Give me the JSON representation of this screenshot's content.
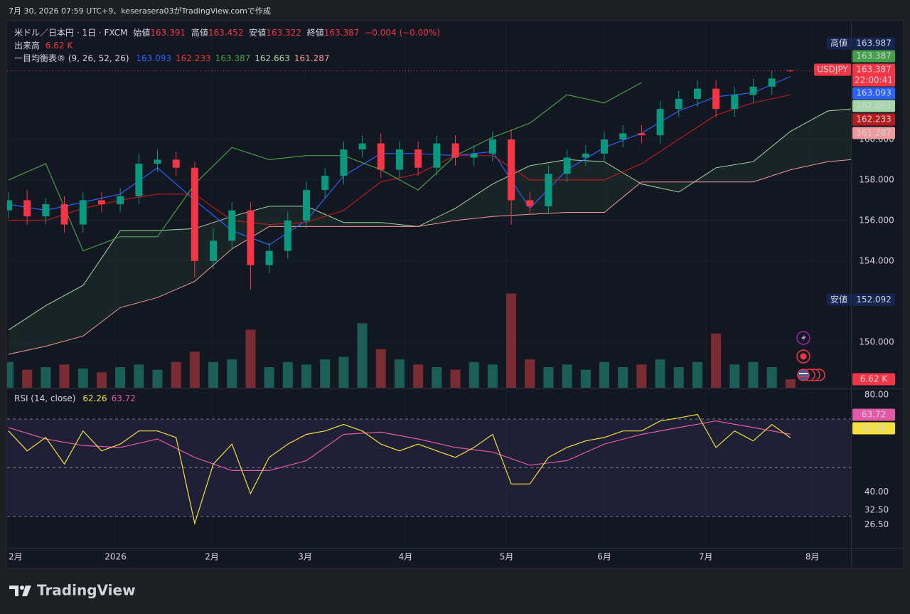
{
  "header": {
    "caption": "7月 30, 2026 07:59 UTC+9、keserasera03がTradingView.comで作成"
  },
  "legend": {
    "symbol": "米ドル／日本円 · 1日 · FXCM",
    "ohlc": [
      {
        "label": "始値",
        "value": "163.391"
      },
      {
        "label": "高値",
        "value": "163.452"
      },
      {
        "label": "安値",
        "value": "163.322"
      },
      {
        "label": "終値",
        "value": "163.387"
      }
    ],
    "change": "−0.004 (−0.00%)",
    "volume": {
      "label": "出来高",
      "value": "6.62 K"
    },
    "ichimoku": {
      "label": "一目均衡表® (9, 26, 52, 26)",
      "values": [
        {
          "value": "163.093",
          "color": "#2962ff"
        },
        {
          "value": "162.233",
          "color": "#e53935"
        },
        {
          "value": "163.387",
          "color": "#43a047"
        },
        {
          "value": "162.663",
          "color": "#a5d6a7"
        },
        {
          "value": "161.287",
          "color": "#ef9a9a"
        }
      ]
    }
  },
  "price_scale": {
    "high": {
      "label": "高値",
      "value": 163.987
    },
    "low": {
      "label": "安値",
      "value": 152.092
    },
    "symbol": "USDJPY",
    "countdown": "22:00:41"
  },
  "chart_data": [
    {
      "type": "candlestick",
      "xlim": [
        0,
        181
      ],
      "ylim": [
        147.75,
        165.82
      ],
      "yticks": [
        {
          "value": 150,
          "label": "150.000"
        },
        {
          "value": 154,
          "label": "154.000"
        },
        {
          "value": 156,
          "label": "156.000"
        },
        {
          "value": 158,
          "label": "158.000"
        },
        {
          "value": 160,
          "label": "160.000"
        }
      ],
      "up_color": "#089981",
      "down_color": "#f23645",
      "x": [
        0,
        4,
        8,
        12,
        16,
        20,
        24,
        28,
        32,
        36,
        40,
        44,
        48,
        52,
        56,
        60,
        64,
        68,
        72,
        76,
        80,
        84,
        88,
        92,
        96,
        100,
        104,
        108,
        112,
        116,
        120,
        124,
        128,
        132,
        136,
        140,
        144,
        148,
        152,
        156,
        160,
        164,
        168
      ],
      "open": [
        156.5,
        157.0,
        156.2,
        156.8,
        155.8,
        157.0,
        156.8,
        157.2,
        158.8,
        159.0,
        158.6,
        154.0,
        155.0,
        156.5,
        153.8,
        154.5,
        156.0,
        157.5,
        158.2,
        159.5,
        159.8,
        158.5,
        159.5,
        158.6,
        159.8,
        159.1,
        159.3,
        160.0,
        157.0,
        156.7,
        158.3,
        159.1,
        159.3,
        160.0,
        160.3,
        160.2,
        161.5,
        162.0,
        162.5,
        161.5,
        162.2,
        162.6,
        163.391
      ],
      "high": [
        157.4,
        157.5,
        157.1,
        157.2,
        157.4,
        157.4,
        157.6,
        159.3,
        159.5,
        159.4,
        158.9,
        155.6,
        156.9,
        156.9,
        154.9,
        156.4,
        157.9,
        158.6,
        159.9,
        160.2,
        160.3,
        159.9,
        159.9,
        160.2,
        160.2,
        159.7,
        160.4,
        160.5,
        157.4,
        158.7,
        159.5,
        159.7,
        160.4,
        160.7,
        160.7,
        161.9,
        162.4,
        162.9,
        162.9,
        162.6,
        163.0,
        163.4,
        163.452
      ],
      "low": [
        156.1,
        155.8,
        155.8,
        155.4,
        155.4,
        156.4,
        156.4,
        156.8,
        158.4,
        158.2,
        153.2,
        153.6,
        154.6,
        152.6,
        153.4,
        154.1,
        155.6,
        157.1,
        157.8,
        159.1,
        158.1,
        158.1,
        158.2,
        158.2,
        158.7,
        158.7,
        158.9,
        155.8,
        156.3,
        156.3,
        157.9,
        158.7,
        158.9,
        159.6,
        159.8,
        159.8,
        161.1,
        161.6,
        161.1,
        161.1,
        161.8,
        162.2,
        163.322
      ],
      "close": [
        157.0,
        156.2,
        156.8,
        155.8,
        157.0,
        156.8,
        157.2,
        158.8,
        159.0,
        158.6,
        154.0,
        155.0,
        156.5,
        153.8,
        154.5,
        156.0,
        157.5,
        158.2,
        159.5,
        159.8,
        158.5,
        159.5,
        158.6,
        159.8,
        159.1,
        159.3,
        160.0,
        157.0,
        156.7,
        158.3,
        159.1,
        159.3,
        160.0,
        160.3,
        160.2,
        161.5,
        162.0,
        162.5,
        161.5,
        162.2,
        162.6,
        163.0,
        163.387
      ],
      "volume": {
        "axis": "y2",
        "up_color": "#1b5e58",
        "down_color": "#7b2c33",
        "values": [
          20,
          14,
          16,
          18,
          15,
          12,
          16,
          18,
          14,
          20,
          28,
          20,
          22,
          45,
          16,
          20,
          18,
          22,
          24,
          50,
          30,
          22,
          18,
          16,
          14,
          20,
          18,
          73,
          22,
          16,
          18,
          14,
          20,
          16,
          18,
          22,
          16,
          20,
          42,
          18,
          20,
          16,
          6.62
        ]
      },
      "y2lim": [
        0,
        80
      ],
      "lines": [
        {
          "color": "#2962ff",
          "x": [
            0,
            8,
            16,
            24,
            32,
            40,
            48,
            56,
            64,
            72,
            80,
            88,
            96,
            104,
            112,
            120,
            128,
            136,
            144,
            152,
            160,
            168
          ],
          "values": [
            156.8,
            156.5,
            156.9,
            157.3,
            158.6,
            157.0,
            155.5,
            154.8,
            156.0,
            158.2,
            159.3,
            159.3,
            159.2,
            159.4,
            156.6,
            158.5,
            159.6,
            160.3,
            161.4,
            162.1,
            162.3,
            163.1
          ]
        },
        {
          "color": "#b71c1c",
          "x": [
            0,
            8,
            16,
            24,
            32,
            40,
            48,
            56,
            64,
            72,
            80,
            88,
            96,
            104,
            112,
            120,
            128,
            136,
            144,
            152,
            160,
            168
          ],
          "values": [
            156.0,
            156.0,
            156.6,
            157.0,
            157.3,
            157.3,
            156.0,
            155.8,
            155.9,
            156.5,
            157.9,
            158.3,
            159.2,
            159.2,
            158.0,
            158.0,
            158.0,
            158.8,
            160.0,
            161.2,
            161.8,
            162.2
          ]
        },
        {
          "color": "#43a047",
          "x": [
            0,
            8,
            16,
            24,
            32,
            40,
            48,
            56,
            64,
            72,
            80,
            88,
            96,
            104,
            112,
            120,
            128,
            136
          ],
          "values": [
            158.0,
            158.8,
            154.5,
            155.2,
            155.2,
            157.8,
            159.6,
            159.0,
            159.2,
            159.2,
            158.5,
            157.5,
            159.2,
            160.1,
            160.8,
            162.2,
            161.8,
            162.8
          ]
        }
      ],
      "cloud": {
        "x": [
          0,
          8,
          16,
          24,
          32,
          40,
          48,
          56,
          64,
          72,
          80,
          88,
          96,
          104,
          112,
          120,
          128,
          136,
          144,
          152,
          160,
          168,
          176,
          181
        ],
        "span_a": [
          150.6,
          151.8,
          152.8,
          155.5,
          155.5,
          155.6,
          156.2,
          156.7,
          156.7,
          155.9,
          155.9,
          155.7,
          156.6,
          157.8,
          158.7,
          159.0,
          158.9,
          157.8,
          157.4,
          158.6,
          158.9,
          160.4,
          161.4,
          161.5
        ],
        "span_b": [
          149.4,
          149.8,
          150.3,
          151.7,
          152.2,
          153.0,
          154.6,
          155.7,
          155.7,
          155.7,
          155.7,
          155.7,
          156.0,
          156.2,
          156.3,
          156.4,
          156.4,
          157.9,
          157.9,
          157.9,
          157.9,
          158.5,
          158.9,
          159.0
        ],
        "color_a": "#a5d6a7",
        "color_b": "#ef9a9a",
        "fill": "rgba(67,160,71,0.10)"
      }
    },
    {
      "type": "line",
      "title": "RSI (14, close)",
      "xlim": [
        0,
        181
      ],
      "ylim": [
        17,
        82
      ],
      "yticks": [
        {
          "value": 80,
          "label": "80.00"
        },
        {
          "value": 40,
          "label": "40.00"
        },
        {
          "value": 32.5,
          "label": "32.50"
        },
        {
          "value": 26.5,
          "label": "26.50"
        }
      ],
      "levels": [
        70,
        50,
        30
      ],
      "band_fill": "rgba(126,87,194,0.12)",
      "xticks": [
        {
          "value": 1.5,
          "label": "2月"
        },
        {
          "value": 23,
          "label": "2026"
        },
        {
          "value": 43.7,
          "label": "2月"
        },
        {
          "value": 63.7,
          "label": "3月"
        },
        {
          "value": 85.3,
          "label": "4月"
        },
        {
          "value": 107,
          "label": "5月"
        },
        {
          "value": 128,
          "label": "6月"
        },
        {
          "value": 149.8,
          "label": "7月"
        },
        {
          "value": 172.7,
          "label": "8月"
        }
      ],
      "series": [
        {
          "color": "#f5e13a",
          "x": [
            0,
            4,
            8,
            12,
            16,
            20,
            24,
            28,
            32,
            36,
            40,
            44,
            48,
            52,
            56,
            60,
            64,
            68,
            72,
            76,
            80,
            84,
            88,
            92,
            96,
            100,
            104,
            108,
            112,
            116,
            120,
            124,
            128,
            132,
            136,
            140,
            144,
            148,
            152,
            156,
            160,
            164,
            168
          ],
          "values": [
            65.1,
            56.9,
            62.4,
            51.5,
            65.1,
            56.9,
            59.7,
            65.1,
            65.1,
            62.4,
            27.0,
            51.5,
            59.7,
            39.3,
            54.2,
            59.7,
            63.7,
            65.1,
            67.8,
            65.1,
            59.7,
            56.9,
            59.7,
            56.9,
            54.2,
            58.3,
            63.7,
            43.3,
            43.3,
            54.2,
            58.3,
            61.0,
            62.4,
            65.1,
            65.1,
            69.2,
            70.5,
            71.9,
            58.3,
            65.1,
            61.0,
            67.8,
            62.26
          ]
        },
        {
          "color": "#e15aa8",
          "x": [
            0,
            8,
            16,
            24,
            32,
            40,
            48,
            56,
            64,
            72,
            80,
            88,
            96,
            104,
            112,
            120,
            128,
            136,
            144,
            152,
            160,
            168
          ],
          "values": [
            66.5,
            61.8,
            59.1,
            58.3,
            61.8,
            54.2,
            48.8,
            48.8,
            52.9,
            63.7,
            64.6,
            61.8,
            58.3,
            56.4,
            51.0,
            52.9,
            59.7,
            63.7,
            66.5,
            69.2,
            66.5,
            63.72
          ]
        }
      ]
    }
  ],
  "footer": {
    "logo": "TradingView"
  }
}
